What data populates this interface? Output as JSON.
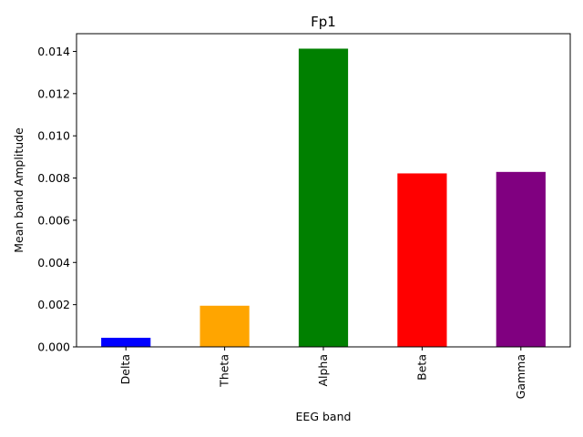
{
  "chart_data": {
    "type": "bar",
    "title": "Fp1",
    "xlabel": "EEG band",
    "ylabel": "Mean band Amplitude",
    "categories": [
      "Delta",
      "Theta",
      "Alpha",
      "Beta",
      "Gamma"
    ],
    "values": [
      0.00043,
      0.00195,
      0.01413,
      0.00822,
      0.00829
    ],
    "colors": [
      "#0000ff",
      "#ffa500",
      "#008000",
      "#ff0000",
      "#800080"
    ],
    "ylim": [
      0,
      0.01484
    ],
    "yticks": [
      0.0,
      0.002,
      0.004,
      0.006,
      0.008,
      0.01,
      0.012,
      0.014
    ],
    "ytick_labels": [
      "0.000",
      "0.002",
      "0.004",
      "0.006",
      "0.008",
      "0.010",
      "0.012",
      "0.014"
    ],
    "grid": false,
    "legend": "none"
  }
}
